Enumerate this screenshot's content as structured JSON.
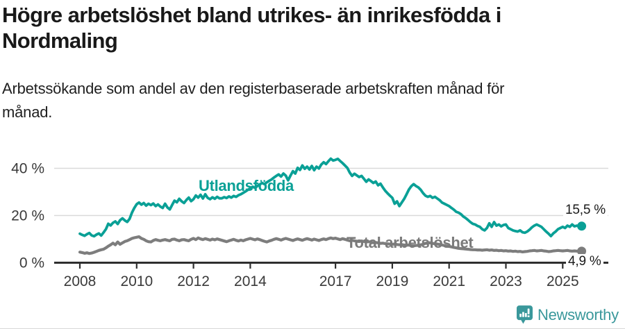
{
  "header": {
    "title_lines": [
      "Högre arbetslöshet bland utrikes- än inrikesfödda i",
      "Nordmaling"
    ],
    "subtitle_lines": [
      "Arbetssökande som andel av den registerbaserade arbetskraften månad för",
      "månad."
    ]
  },
  "colors": {
    "accent_teal": "#0aa096",
    "line_gray": "#7d7d7d",
    "axis": "#2f2f2f",
    "axis_text": "#3a3a3a",
    "gridline": "#d9d9d9",
    "brand": "#3a989b"
  },
  "chart_data": {
    "type": "line",
    "title": "Högre arbetslöshet bland utrikes- än inrikesfödda i Nordmaling",
    "subtitle": "Arbetssökande som andel av den registerbaserade arbetskraften månad för månad.",
    "unit": "%",
    "x_start_year": 2008,
    "x_interval": "monthly",
    "grid": "horizontal",
    "legend_position": "inline-labels",
    "ylim": [
      0,
      46
    ],
    "x_ticks": [
      {
        "year": 2008,
        "label": "2008"
      },
      {
        "year": 2010,
        "label": "2010"
      },
      {
        "year": 2012,
        "label": "2012"
      },
      {
        "year": 2014,
        "label": "2014"
      },
      {
        "year": 2017,
        "label": "2017"
      },
      {
        "year": 2019,
        "label": "2019"
      },
      {
        "year": 2021,
        "label": "2021"
      },
      {
        "year": 2023,
        "label": "2023"
      },
      {
        "year": 2025,
        "label": "2025"
      }
    ],
    "y_ticks": [
      {
        "value": 0,
        "label": "0 %"
      },
      {
        "value": 20,
        "label": "20 %"
      },
      {
        "value": 40,
        "label": "40 %"
      }
    ],
    "series": [
      {
        "name": "Utlandsfödda",
        "color": "#0aa096",
        "end_value": 15.5,
        "end_value_label": "15,5 %",
        "values": [
          12.3,
          11.8,
          11.4,
          12.1,
          12.6,
          11.6,
          11.2,
          11.9,
          12.4,
          11.5,
          12.8,
          14.2,
          16.5,
          15.8,
          16.9,
          17.5,
          16.4,
          18.0,
          18.8,
          17.9,
          17.3,
          18.6,
          21.2,
          23.2,
          24.8,
          25.5,
          24.6,
          25.3,
          24.2,
          25.0,
          24.4,
          25.1,
          24.0,
          24.7,
          23.8,
          23.2,
          25.0,
          23.4,
          22.6,
          24.5,
          26.3,
          25.6,
          27.1,
          26.0,
          25.3,
          26.6,
          27.6,
          26.1,
          26.9,
          28.5,
          27.6,
          28.8,
          27.2,
          29.0,
          27.5,
          26.9,
          27.7,
          27.1,
          27.9,
          27.3,
          27.3,
          27.8,
          27.4,
          28.1,
          27.6,
          28.3,
          27.9,
          28.6,
          29.0,
          29.6,
          30.2,
          30.9,
          31.5,
          32.2,
          31.7,
          32.5,
          33.2,
          33.8,
          33.3,
          34.1,
          34.7,
          35.3,
          36.1,
          36.8,
          37.4,
          36.5,
          37.8,
          36.9,
          34.9,
          36.9,
          38.8,
          37.8,
          40.2,
          39.3,
          41.2,
          39.8,
          40.7,
          39.5,
          41.0,
          39.2,
          40.7,
          39.9,
          41.6,
          42.6,
          41.8,
          43.0,
          44.1,
          43.3,
          43.6,
          44.0,
          43.1,
          42.2,
          41.2,
          40.2,
          38.2,
          36.8,
          37.7,
          37.0,
          36.3,
          36.8,
          35.6,
          34.3,
          35.3,
          34.6,
          33.8,
          34.4,
          32.8,
          33.5,
          31.9,
          30.5,
          29.4,
          28.4,
          27.5,
          25.0,
          26.0,
          24.0,
          25.5,
          27.0,
          28.9,
          31.0,
          32.4,
          33.3,
          32.5,
          31.9,
          30.9,
          29.5,
          28.4,
          27.9,
          28.3,
          27.5,
          27.9,
          27.2,
          26.5,
          25.5,
          25.0,
          24.5,
          24.0,
          23.2,
          22.5,
          21.6,
          21.2,
          20.6,
          19.6,
          18.9,
          18.1,
          17.2,
          16.5,
          16.2,
          15.6,
          15.2,
          14.2,
          13.7,
          14.7,
          16.7,
          15.2,
          17.2,
          15.7,
          16.2,
          15.4,
          16.0,
          16.2,
          14.7,
          14.2,
          13.7,
          13.4,
          13.2,
          13.7,
          12.9,
          12.7,
          13.2,
          14.0,
          15.0,
          15.7,
          16.2,
          15.7,
          15.2,
          14.2,
          13.2,
          12.3,
          11.3,
          12.4,
          13.2,
          14.2,
          14.7,
          15.2,
          14.7,
          15.7,
          15.2,
          16.2,
          15.4,
          15.7,
          15.3,
          15.5
        ]
      },
      {
        "name": "Total arbetslöshet",
        "color": "#7d7d7d",
        "end_value": 4.9,
        "end_value_label": "4,9 %",
        "values": [
          4.5,
          4.3,
          4.0,
          4.2,
          3.9,
          4.1,
          4.4,
          4.8,
          5.2,
          5.5,
          5.7,
          6.3,
          7.0,
          7.6,
          8.3,
          7.6,
          8.8,
          7.8,
          8.4,
          9.0,
          9.3,
          9.8,
          10.3,
          10.6,
          10.8,
          11.0,
          10.3,
          9.9,
          9.3,
          8.9,
          8.8,
          9.4,
          9.8,
          9.5,
          9.3,
          9.6,
          9.8,
          9.5,
          9.3,
          9.9,
          10.0,
          9.6,
          9.3,
          9.7,
          9.8,
          9.5,
          9.3,
          9.9,
          10.3,
          9.8,
          10.5,
          10.1,
          9.8,
          10.2,
          9.9,
          9.6,
          10.0,
          9.7,
          10.1,
          9.8,
          9.5,
          9.2,
          8.9,
          9.3,
          9.6,
          9.9,
          9.5,
          9.2,
          9.6,
          9.3,
          9.7,
          10.0,
          10.3,
          10.0,
          9.7,
          10.1,
          9.8,
          9.4,
          9.1,
          8.8,
          9.2,
          9.5,
          9.9,
          10.2,
          9.9,
          9.6,
          10.0,
          10.3,
          10.0,
          9.7,
          9.4,
          9.8,
          10.1,
          9.8,
          9.5,
          9.9,
          10.2,
          9.9,
          9.6,
          10.0,
          9.7,
          9.4,
          9.8,
          10.1,
          9.8,
          10.2,
          10.5,
          10.2,
          10.4,
          10.1,
          9.8,
          10.2,
          9.9,
          9.6,
          9.3,
          9.5,
          9.3,
          9.1,
          9.0,
          9.2,
          9.0,
          8.8,
          8.9,
          8.7,
          8.5,
          8.6,
          8.4,
          8.2,
          8.3,
          8.1,
          8.0,
          7.9,
          7.8,
          7.9,
          7.7,
          7.6,
          7.7,
          7.5,
          7.4,
          7.5,
          7.3,
          7.2,
          7.3,
          7.4,
          7.6,
          7.8,
          8.2,
          8.5,
          8.4,
          8.2,
          8.0,
          7.9,
          7.7,
          7.5,
          7.3,
          7.1,
          6.9,
          6.7,
          6.5,
          6.3,
          6.1,
          6.0,
          5.9,
          5.8,
          5.7,
          5.6,
          5.5,
          5.5,
          5.4,
          5.4,
          5.3,
          5.4,
          5.5,
          5.3,
          5.4,
          5.2,
          5.3,
          5.1,
          5.2,
          5.0,
          5.1,
          4.9,
          5.0,
          4.8,
          4.9,
          4.7,
          4.8,
          4.6,
          4.7,
          4.8,
          5.0,
          5.1,
          5.2,
          5.0,
          5.1,
          5.2,
          5.0,
          4.9,
          4.7,
          4.8,
          5.0,
          5.1,
          5.2,
          5.1,
          5.0,
          5.1,
          5.2,
          5.0,
          4.9,
          5.0,
          4.9,
          4.8,
          4.9
        ]
      }
    ]
  },
  "footer": {
    "brand": "Newsworthy"
  }
}
